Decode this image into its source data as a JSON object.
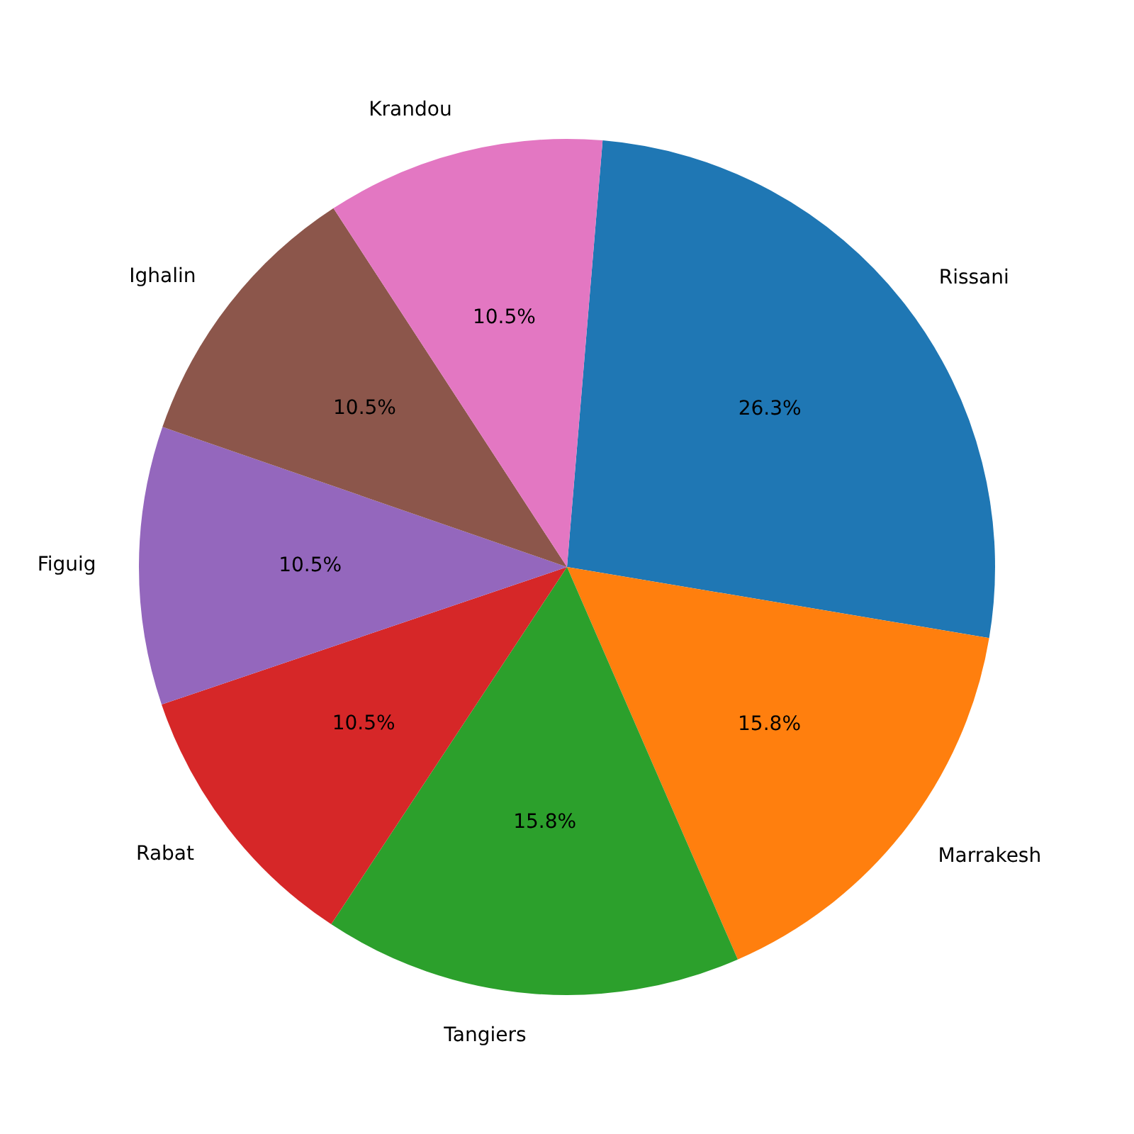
{
  "chart_data": {
    "type": "pie",
    "categories": [
      "Rissani",
      "Marrakesh",
      "Tangiers",
      "Rabat",
      "Figuig",
      "Ighalin",
      "Krandou"
    ],
    "values": [
      26.3,
      15.8,
      15.8,
      10.5,
      10.5,
      10.5,
      10.5
    ],
    "colors": [
      "#1f77b4",
      "#ff7f0e",
      "#2ca02c",
      "#d62728",
      "#9467bd",
      "#8c564b",
      "#e377c2"
    ],
    "value_labels": [
      "26.3%",
      "15.8%",
      "15.8%",
      "10.5%",
      "10.5%",
      "10.5%",
      "10.5%"
    ],
    "legend": false
  }
}
